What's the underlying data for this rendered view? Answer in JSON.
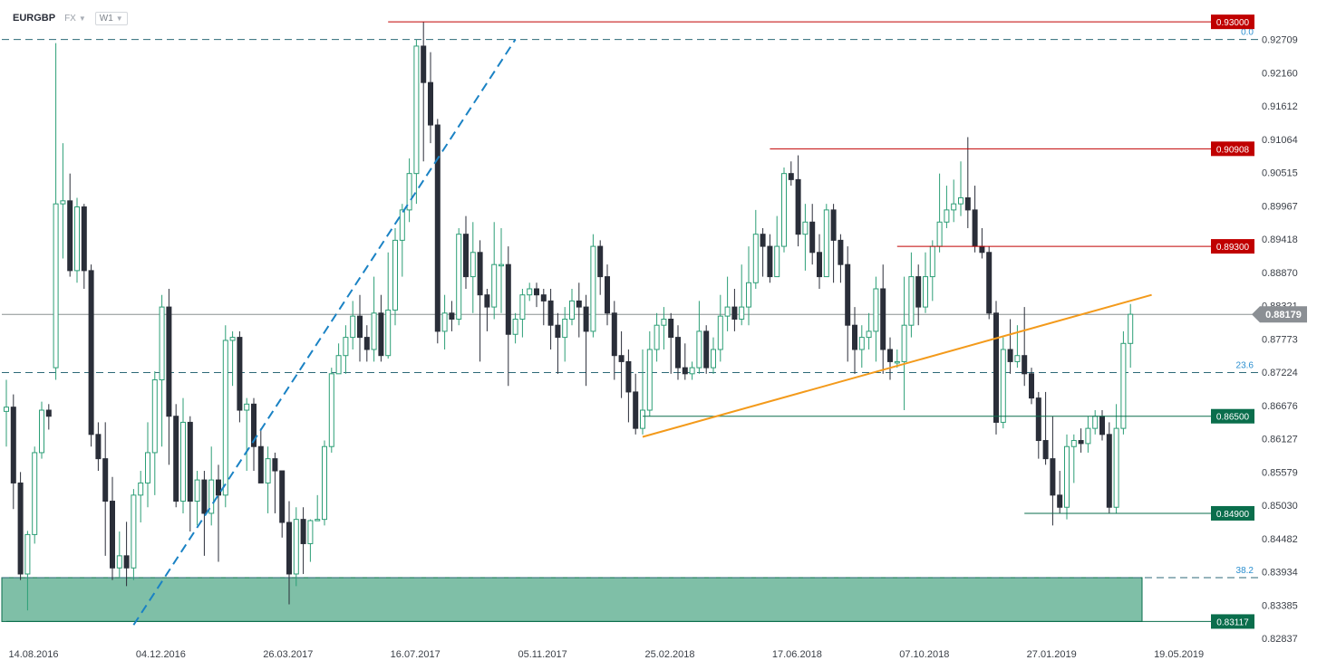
{
  "header": {
    "symbol": "EURGBP",
    "market": "FX",
    "timeframe": "W1"
  },
  "chart_data": {
    "type": "candlestick",
    "symbol": "EURGBP",
    "timeframe": "W1",
    "y_ticks": [
      "0.92709",
      "0.92160",
      "0.91612",
      "0.91064",
      "0.90515",
      "0.89967",
      "0.89418",
      "0.88870",
      "0.88321",
      "0.87773",
      "0.87224",
      "0.86676",
      "0.86127",
      "0.85579",
      "0.85030",
      "0.84482",
      "0.83934",
      "0.83385",
      "0.82837"
    ],
    "x_ticks": [
      "14.08.2016",
      "04.12.2016",
      "26.03.2017",
      "16.07.2017",
      "05.11.2017",
      "25.02.2018",
      "17.06.2018",
      "07.10.2018",
      "27.01.2019",
      "19.05.2019"
    ],
    "ylim": [
      0.8284,
      0.9336
    ],
    "current_price": "0.88179",
    "levels": [
      {
        "label": "0.93000",
        "value": 0.93,
        "color": "#c00000",
        "start": "16.07.2017"
      },
      {
        "label": "0.90908",
        "value": 0.90908,
        "color": "#c00000",
        "start": "17.06.2018"
      },
      {
        "label": "0.89300",
        "value": 0.893,
        "color": "#c00000",
        "start": "07.10.2018"
      },
      {
        "label": "0.86500",
        "value": 0.865,
        "color": "#0a6e4c",
        "start": "25.02.2018"
      },
      {
        "label": "0.84900",
        "value": 0.849,
        "color": "#0a6e4c",
        "start": "27.01.2019"
      },
      {
        "label": "0.83117",
        "value": 0.83117,
        "color": "#0a6e4c",
        "start": "14.08.2016"
      }
    ],
    "fib_levels": [
      {
        "label": "0.0",
        "value": 0.92709
      },
      {
        "label": "23.6",
        "value": 0.8722
      },
      {
        "label": "38.2",
        "value": 0.8384
      }
    ],
    "support_zone": [
      0.83117,
      0.8384
    ],
    "trendlines": [
      {
        "name": "blue-dashed",
        "color": "#1a82c4",
        "dashed": true,
        "points": [
          [
            "04.12.2016",
            0.8306
          ],
          [
            "05.11.2017",
            0.9271
          ]
        ]
      },
      {
        "name": "orange",
        "color": "#f39a1b",
        "dashed": false,
        "points": [
          [
            "25.02.2018",
            0.8616
          ],
          [
            "19.05.2019",
            0.885
          ]
        ]
      }
    ],
    "candles": [
      [
        0.8658,
        0.8665,
        0.871,
        0.86
      ],
      [
        0.8665,
        0.854,
        0.8686,
        0.8497
      ],
      [
        0.854,
        0.839,
        0.8558,
        0.838
      ],
      [
        0.839,
        0.8455,
        0.8461,
        0.833
      ],
      [
        0.8455,
        0.859,
        0.86,
        0.844
      ],
      [
        0.859,
        0.866,
        0.8674,
        0.858
      ],
      [
        0.866,
        0.865,
        0.867,
        0.8628
      ],
      [
        0.873,
        0.9,
        0.9265,
        0.871
      ],
      [
        0.9,
        0.9005,
        0.91,
        0.891
      ],
      [
        0.9005,
        0.889,
        0.905,
        0.888
      ],
      [
        0.889,
        0.8995,
        0.901,
        0.887
      ],
      [
        0.8995,
        0.889,
        0.9,
        0.886
      ],
      [
        0.889,
        0.862,
        0.89,
        0.86
      ],
      [
        0.862,
        0.858,
        0.864,
        0.856
      ],
      [
        0.858,
        0.851,
        0.864,
        0.842
      ],
      [
        0.851,
        0.84,
        0.855,
        0.838
      ],
      [
        0.84,
        0.842,
        0.846,
        0.8385
      ],
      [
        0.842,
        0.84,
        0.8476,
        0.837
      ],
      [
        0.84,
        0.852,
        0.853,
        0.838
      ],
      [
        0.852,
        0.854,
        0.856,
        0.8475
      ],
      [
        0.854,
        0.859,
        0.864,
        0.85
      ],
      [
        0.859,
        0.871,
        0.8724,
        0.852
      ],
      [
        0.871,
        0.883,
        0.885,
        0.86
      ],
      [
        0.883,
        0.865,
        0.886,
        0.857
      ],
      [
        0.865,
        0.851,
        0.867,
        0.85
      ],
      [
        0.851,
        0.864,
        0.868,
        0.849
      ],
      [
        0.864,
        0.851,
        0.865,
        0.846
      ],
      [
        0.851,
        0.8545,
        0.856,
        0.847
      ],
      [
        0.8545,
        0.849,
        0.856,
        0.842
      ],
      [
        0.849,
        0.8545,
        0.86,
        0.847
      ],
      [
        0.8545,
        0.852,
        0.857,
        0.841
      ],
      [
        0.852,
        0.8775,
        0.88,
        0.85
      ],
      [
        0.8775,
        0.878,
        0.879,
        0.87
      ],
      [
        0.878,
        0.866,
        0.879,
        0.864
      ],
      [
        0.866,
        0.867,
        0.868,
        0.856
      ],
      [
        0.867,
        0.86,
        0.868,
        0.856
      ],
      [
        0.86,
        0.854,
        0.863,
        0.854
      ],
      [
        0.854,
        0.858,
        0.86,
        0.849
      ],
      [
        0.858,
        0.856,
        0.859,
        0.849
      ],
      [
        0.856,
        0.8475,
        0.856,
        0.845
      ],
      [
        0.8475,
        0.839,
        0.851,
        0.834
      ],
      [
        0.839,
        0.848,
        0.85,
        0.837
      ],
      [
        0.848,
        0.844,
        0.85,
        0.839
      ],
      [
        0.844,
        0.8478,
        0.848,
        0.841
      ],
      [
        0.8478,
        0.848,
        0.852,
        0.848
      ],
      [
        0.848,
        0.86,
        0.861,
        0.847
      ],
      [
        0.86,
        0.872,
        0.873,
        0.859
      ],
      [
        0.872,
        0.875,
        0.877,
        0.872
      ],
      [
        0.875,
        0.878,
        0.88,
        0.872
      ],
      [
        0.878,
        0.8815,
        0.884,
        0.876
      ],
      [
        0.8815,
        0.878,
        0.885,
        0.874
      ],
      [
        0.878,
        0.876,
        0.88,
        0.874
      ],
      [
        0.876,
        0.882,
        0.888,
        0.874
      ],
      [
        0.882,
        0.875,
        0.885,
        0.874
      ],
      [
        0.875,
        0.8825,
        0.892,
        0.8745
      ],
      [
        0.8825,
        0.894,
        0.896,
        0.88
      ],
      [
        0.894,
        0.899,
        0.9,
        0.888
      ],
      [
        0.899,
        0.905,
        0.9075,
        0.897
      ],
      [
        0.905,
        0.926,
        0.9271,
        0.9
      ],
      [
        0.926,
        0.92,
        0.93,
        0.907
      ],
      [
        0.92,
        0.913,
        0.925,
        0.91
      ],
      [
        0.913,
        0.879,
        0.914,
        0.877
      ],
      [
        0.879,
        0.882,
        0.885,
        0.876
      ],
      [
        0.882,
        0.881,
        0.884,
        0.879
      ],
      [
        0.881,
        0.895,
        0.896,
        0.88
      ],
      [
        0.895,
        0.888,
        0.898,
        0.886
      ],
      [
        0.888,
        0.892,
        0.897,
        0.882
      ],
      [
        0.892,
        0.885,
        0.894,
        0.874
      ],
      [
        0.885,
        0.883,
        0.886,
        0.879
      ],
      [
        0.883,
        0.89,
        0.897,
        0.881
      ],
      [
        0.89,
        0.89,
        0.896,
        0.882
      ],
      [
        0.89,
        0.8785,
        0.893,
        0.87
      ],
      [
        0.8785,
        0.881,
        0.882,
        0.877
      ],
      [
        0.881,
        0.885,
        0.886,
        0.878
      ],
      [
        0.885,
        0.886,
        0.887,
        0.884
      ],
      [
        0.886,
        0.885,
        0.887,
        0.883
      ],
      [
        0.885,
        0.884,
        0.886,
        0.88
      ],
      [
        0.884,
        0.88,
        0.886,
        0.876
      ],
      [
        0.88,
        0.878,
        0.882,
        0.872
      ],
      [
        0.878,
        0.881,
        0.883,
        0.874
      ],
      [
        0.881,
        0.884,
        0.886,
        0.88
      ],
      [
        0.884,
        0.883,
        0.887,
        0.878
      ],
      [
        0.883,
        0.879,
        0.885,
        0.87
      ],
      [
        0.879,
        0.893,
        0.895,
        0.878
      ],
      [
        0.893,
        0.888,
        0.894,
        0.885
      ],
      [
        0.888,
        0.882,
        0.89,
        0.88
      ],
      [
        0.882,
        0.875,
        0.884,
        0.871
      ],
      [
        0.875,
        0.874,
        0.879,
        0.868
      ],
      [
        0.874,
        0.869,
        0.876,
        0.864
      ],
      [
        0.869,
        0.863,
        0.872,
        0.862
      ],
      [
        0.863,
        0.866,
        0.876,
        0.862
      ],
      [
        0.866,
        0.876,
        0.879,
        0.865
      ],
      [
        0.876,
        0.88,
        0.882,
        0.874
      ],
      [
        0.88,
        0.881,
        0.883,
        0.876
      ],
      [
        0.881,
        0.878,
        0.882,
        0.872
      ],
      [
        0.878,
        0.873,
        0.88,
        0.871
      ],
      [
        0.873,
        0.872,
        0.877,
        0.871
      ],
      [
        0.872,
        0.873,
        0.874,
        0.871
      ],
      [
        0.873,
        0.879,
        0.884,
        0.872
      ],
      [
        0.879,
        0.873,
        0.88,
        0.872
      ],
      [
        0.873,
        0.876,
        0.878,
        0.872
      ],
      [
        0.876,
        0.8815,
        0.885,
        0.874
      ],
      [
        0.8815,
        0.883,
        0.888,
        0.879
      ],
      [
        0.883,
        0.881,
        0.886,
        0.879
      ],
      [
        0.881,
        0.883,
        0.89,
        0.88
      ],
      [
        0.883,
        0.887,
        0.893,
        0.88
      ],
      [
        0.887,
        0.895,
        0.899,
        0.886
      ],
      [
        0.895,
        0.893,
        0.896,
        0.888
      ],
      [
        0.893,
        0.888,
        0.895,
        0.887
      ],
      [
        0.888,
        0.893,
        0.898,
        0.888
      ],
      [
        0.893,
        0.905,
        0.906,
        0.892
      ],
      [
        0.905,
        0.904,
        0.907,
        0.903
      ],
      [
        0.904,
        0.895,
        0.908,
        0.893
      ],
      [
        0.895,
        0.897,
        0.9,
        0.889
      ],
      [
        0.897,
        0.892,
        0.9,
        0.89
      ],
      [
        0.892,
        0.888,
        0.895,
        0.886
      ],
      [
        0.888,
        0.899,
        0.9,
        0.888
      ],
      [
        0.899,
        0.894,
        0.9,
        0.887
      ],
      [
        0.894,
        0.89,
        0.895,
        0.887
      ],
      [
        0.89,
        0.88,
        0.893,
        0.874
      ],
      [
        0.88,
        0.876,
        0.883,
        0.872
      ],
      [
        0.876,
        0.878,
        0.88,
        0.873
      ],
      [
        0.878,
        0.879,
        0.882,
        0.876
      ],
      [
        0.879,
        0.886,
        0.888,
        0.874
      ],
      [
        0.886,
        0.876,
        0.89,
        0.872
      ],
      [
        0.876,
        0.874,
        0.878,
        0.871
      ],
      [
        0.874,
        0.874,
        0.876,
        0.873
      ],
      [
        0.874,
        0.88,
        0.888,
        0.866
      ],
      [
        0.88,
        0.888,
        0.892,
        0.878
      ],
      [
        0.888,
        0.883,
        0.89,
        0.88
      ],
      [
        0.883,
        0.888,
        0.892,
        0.882
      ],
      [
        0.888,
        0.893,
        0.894,
        0.884
      ],
      [
        0.893,
        0.897,
        0.905,
        0.892
      ],
      [
        0.897,
        0.899,
        0.903,
        0.896
      ],
      [
        0.899,
        0.9,
        0.904,
        0.897
      ],
      [
        0.9,
        0.901,
        0.907,
        0.898
      ],
      [
        0.901,
        0.899,
        0.911,
        0.896
      ],
      [
        0.899,
        0.893,
        0.903,
        0.892
      ],
      [
        0.893,
        0.892,
        0.896,
        0.891
      ],
      [
        0.892,
        0.882,
        0.893,
        0.881
      ],
      [
        0.882,
        0.864,
        0.884,
        0.862
      ],
      [
        0.864,
        0.876,
        0.878,
        0.863
      ],
      [
        0.876,
        0.874,
        0.881,
        0.872
      ],
      [
        0.874,
        0.875,
        0.88,
        0.873
      ],
      [
        0.875,
        0.872,
        0.883,
        0.87
      ],
      [
        0.872,
        0.868,
        0.873,
        0.867
      ],
      [
        0.868,
        0.861,
        0.869,
        0.858
      ],
      [
        0.861,
        0.858,
        0.869,
        0.857
      ],
      [
        0.858,
        0.852,
        0.865,
        0.847
      ],
      [
        0.852,
        0.85,
        0.856,
        0.849
      ],
      [
        0.85,
        0.86,
        0.862,
        0.848
      ],
      [
        0.86,
        0.861,
        0.862,
        0.854
      ],
      [
        0.861,
        0.8605,
        0.863,
        0.859
      ],
      [
        0.8605,
        0.863,
        0.865,
        0.859
      ],
      [
        0.863,
        0.865,
        0.866,
        0.862
      ],
      [
        0.865,
        0.862,
        0.866,
        0.861
      ],
      [
        0.862,
        0.85,
        0.864,
        0.849
      ],
      [
        0.85,
        0.863,
        0.867,
        0.849
      ],
      [
        0.863,
        0.877,
        0.879,
        0.862
      ],
      [
        0.877,
        0.8818,
        0.8835,
        0.873
      ]
    ]
  }
}
